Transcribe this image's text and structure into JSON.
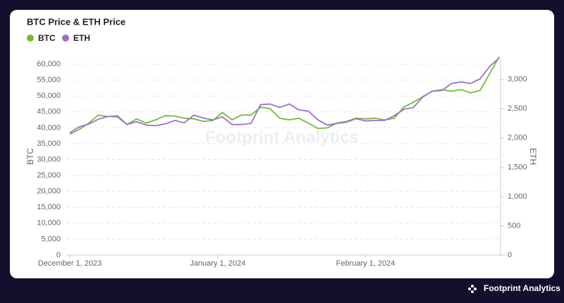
{
  "chart_data": {
    "type": "line",
    "title": "BTC Price & ETH Price",
    "x": [
      "2023-12-01",
      "2023-12-03",
      "2023-12-05",
      "2023-12-07",
      "2023-12-09",
      "2023-12-11",
      "2023-12-13",
      "2023-12-15",
      "2023-12-17",
      "2023-12-19",
      "2023-12-21",
      "2023-12-23",
      "2023-12-25",
      "2023-12-27",
      "2023-12-29",
      "2023-12-31",
      "2024-01-02",
      "2024-01-04",
      "2024-01-06",
      "2024-01-08",
      "2024-01-10",
      "2024-01-12",
      "2024-01-14",
      "2024-01-16",
      "2024-01-18",
      "2024-01-20",
      "2024-01-22",
      "2024-01-24",
      "2024-01-26",
      "2024-01-28",
      "2024-01-30",
      "2024-02-01",
      "2024-02-03",
      "2024-02-05",
      "2024-02-07",
      "2024-02-09",
      "2024-02-11",
      "2024-02-13",
      "2024-02-15",
      "2024-02-17",
      "2024-02-19",
      "2024-02-21",
      "2024-02-23",
      "2024-02-25",
      "2024-02-27",
      "2024-02-29"
    ],
    "series": [
      {
        "name": "BTC",
        "color": "#6fbf2f",
        "axis": "y",
        "values": [
          38000,
          39500,
          41500,
          44000,
          43500,
          43800,
          41000,
          42800,
          41500,
          42500,
          43800,
          43700,
          43000,
          42800,
          42000,
          42300,
          44800,
          42500,
          44000,
          44000,
          46500,
          46000,
          43000,
          42500,
          43000,
          41500,
          39800,
          40000,
          41500,
          42000,
          43000,
          42800,
          43000,
          42500,
          43000,
          46500,
          48000,
          49800,
          51500,
          52000,
          51500,
          52000,
          51000,
          51700,
          57000,
          62300
        ]
      },
      {
        "name": "ETH",
        "color": "#9c6fcf",
        "axis": "y2",
        "values": [
          2090,
          2190,
          2240,
          2320,
          2370,
          2360,
          2230,
          2280,
          2220,
          2210,
          2240,
          2300,
          2260,
          2390,
          2340,
          2310,
          2360,
          2230,
          2230,
          2250,
          2570,
          2580,
          2520,
          2580,
          2480,
          2460,
          2310,
          2220,
          2250,
          2270,
          2330,
          2290,
          2300,
          2300,
          2380,
          2490,
          2520,
          2700,
          2800,
          2810,
          2930,
          2960,
          2930,
          3010,
          3220,
          3370
        ]
      }
    ],
    "xlim": [
      "2023-12-01",
      "2024-02-29"
    ],
    "xticks": [
      {
        "value": "2023-12-01",
        "label": "December 1, 2023"
      },
      {
        "value": "2024-01-01",
        "label": "January 1, 2024"
      },
      {
        "value": "2024-02-01",
        "label": "February 1, 2024"
      }
    ],
    "ylim": [
      0,
      62000
    ],
    "yticks": [
      0,
      {
        "value": 5000,
        "label": "5,000"
      },
      {
        "value": 10000,
        "label": "10,000"
      },
      {
        "value": 15000,
        "label": "15,000"
      },
      {
        "value": 20000,
        "label": "20,000"
      },
      {
        "value": 25000,
        "label": "25,000"
      },
      {
        "value": 30000,
        "label": "30,000"
      },
      {
        "value": 35000,
        "label": "35,000"
      },
      {
        "value": 40000,
        "label": "40,000"
      },
      {
        "value": 45000,
        "label": "45,000"
      },
      {
        "value": 50000,
        "label": "50,000"
      },
      {
        "value": 55000,
        "label": "55,000"
      },
      {
        "value": 60000,
        "label": "60,000"
      }
    ],
    "y2lim": [
      0,
      3370
    ],
    "y2ticks": [
      0,
      500,
      {
        "value": 1000,
        "label": "1,000"
      },
      {
        "value": 1500,
        "label": "1,500"
      },
      {
        "value": 2000,
        "label": "2,000"
      },
      {
        "value": 2500,
        "label": "2,500"
      },
      {
        "value": 3000,
        "label": "3,000"
      }
    ],
    "ylabel": "BTC",
    "y2label": "ETH",
    "grid": true,
    "legend": "top-left",
    "watermark": "Footprint Analytics",
    "footer": "Footprint Analytics"
  }
}
